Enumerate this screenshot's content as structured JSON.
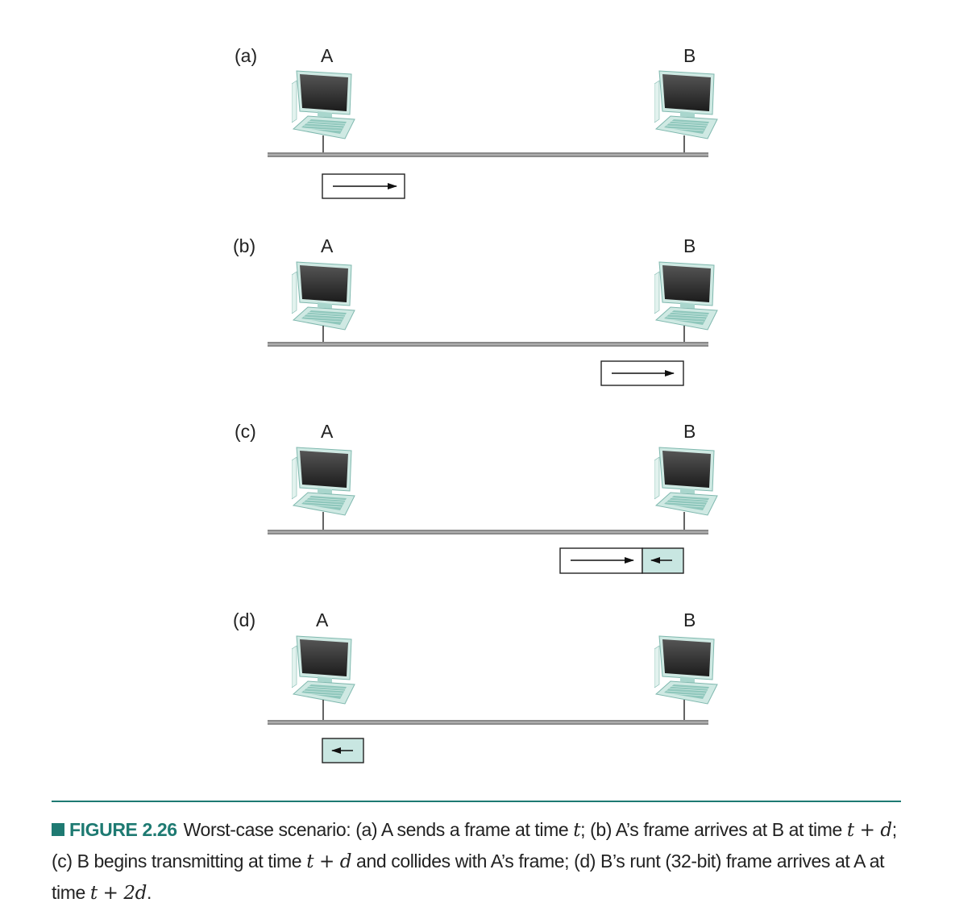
{
  "panels": [
    {
      "label": "(a)",
      "node_a": "A",
      "node_b": "B"
    },
    {
      "label": "(b)",
      "node_a": "A",
      "node_b": "B"
    },
    {
      "label": "(c)",
      "node_a": "A",
      "node_b": "B"
    },
    {
      "label": "(d)",
      "node_a": "A",
      "node_b": "B"
    }
  ],
  "caption": {
    "figure_label": "FIGURE 2.26",
    "seg1": "Worst-case scenario: (a) A sends a frame at time ",
    "m1": "t",
    "seg2": "; (b) A’s frame arrives at B at time ",
    "m2": "t + d",
    "seg3": "; (c) B begins transmitting at time ",
    "m3": "t + d",
    "seg4": " and collides with A’s frame; (d) B’s runt (32-bit) frame arrives at A at time ",
    "m4": "t + 2d",
    "seg5": "."
  },
  "colors": {
    "accent": "#1e7a72",
    "runt_frame_fill": "#c8e6e1",
    "cable": "#8a8a8a",
    "screen_dark": "#2e2e2e",
    "computer_body": "#bfe3dc"
  },
  "icons": [
    "computer-icon",
    "arrow-right-icon",
    "arrow-left-icon"
  ]
}
